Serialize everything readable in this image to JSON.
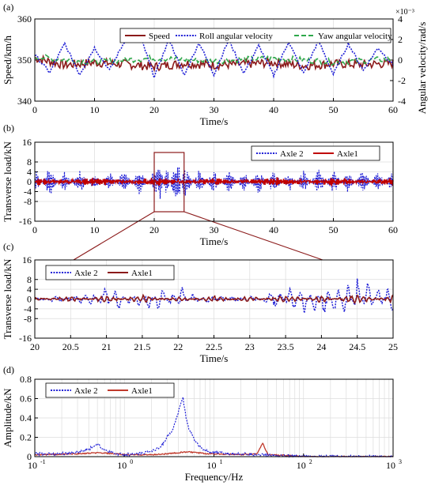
{
  "chart_data": [
    {
      "panel": "(a)",
      "type": "line",
      "xlabel": "Time/s",
      "ylabel": "Speed/km/h",
      "y2label": "Angular velocity/rad/s",
      "y2_exponent": "×10⁻³",
      "xlim": [
        0,
        60
      ],
      "ylim": [
        340,
        360
      ],
      "y2lim": [
        -4,
        4
      ],
      "x_ticks": [
        "0",
        "10",
        "20",
        "30",
        "40",
        "50",
        "60"
      ],
      "y_ticks": [
        "340",
        "350",
        "360"
      ],
      "y2_ticks": [
        "-4",
        "-2",
        "0",
        "2",
        "4"
      ],
      "grid": true,
      "legend_position": "top-right",
      "series": [
        {
          "name": "Speed",
          "axis": "left",
          "color": "#8B1A1A",
          "style": "solid",
          "x": [
            0,
            5,
            10,
            15,
            20,
            25,
            30,
            35,
            40,
            45,
            50,
            55,
            60
          ],
          "values": [
            350.5,
            348.8,
            349.4,
            349.0,
            348.4,
            349.2,
            348.8,
            349.0,
            349.4,
            348.6,
            349.1,
            348.9,
            349.2
          ]
        },
        {
          "name": "Roll angular velocity",
          "axis": "right",
          "color": "#1f1fd6",
          "style": "dotted",
          "x": [
            0,
            2.5,
            5,
            7.5,
            10,
            12.5,
            15,
            17.5,
            20,
            22.5,
            25,
            27.5,
            30,
            32.5,
            35,
            37.5,
            40,
            42.5,
            45,
            47.5,
            50,
            52.5,
            55,
            57.5,
            60
          ],
          "values": [
            0.5,
            -1.2,
            1.6,
            -1.4,
            1.2,
            -1.0,
            1.8,
            2.6,
            -1.6,
            2.0,
            -1.5,
            1.7,
            -1.4,
            2.0,
            -1.3,
            1.4,
            -1.5,
            1.8,
            -1.3,
            1.9,
            -1.4,
            1.6,
            -1.0,
            1.2,
            -0.5
          ]
        },
        {
          "name": "Yaw angular velocity",
          "axis": "right",
          "color": "#2ea84a",
          "style": "dashed",
          "x": [
            0,
            10,
            20,
            30,
            40,
            50,
            60
          ],
          "values": [
            0.3,
            -0.2,
            0.2,
            -0.1,
            0.2,
            -0.2,
            0.1
          ]
        }
      ]
    },
    {
      "panel": "(b)",
      "type": "line",
      "xlabel": "Time/s",
      "ylabel": "Transverse load/kN",
      "xlim": [
        0,
        60
      ],
      "ylim": [
        -16,
        16
      ],
      "x_ticks": [
        "0",
        "10",
        "20",
        "30",
        "40",
        "50",
        "60"
      ],
      "y_ticks": [
        "-16",
        "-8",
        "-4",
        "0",
        "4",
        "8",
        "16"
      ],
      "grid": true,
      "legend_position": "top-right",
      "zoom_window": [
        20,
        25
      ],
      "series": [
        {
          "name": "Axle 2",
          "color": "#1f1fd6",
          "style": "dotted",
          "x": [
            0,
            2.5,
            5,
            7.5,
            10,
            12.5,
            15,
            17.5,
            20,
            21,
            22,
            23,
            24,
            25,
            27.5,
            30,
            32.5,
            35,
            37.5,
            40,
            42.5,
            45,
            47.5,
            50,
            52.5,
            55,
            57.5,
            60
          ],
          "values": [
            4.8,
            -5.6,
            4.0,
            -4.4,
            3.6,
            -4.0,
            4.8,
            -5.2,
            4.4,
            7.6,
            -6.8,
            4.0,
            9.2,
            -7.6,
            4.4,
            -4.4,
            4.8,
            -4.0,
            4.6,
            -4.8,
            4.0,
            -4.4,
            4.8,
            -4.6,
            4.2,
            -4.8,
            4.4,
            -4.8
          ]
        },
        {
          "name": "Axle1",
          "color": "#c00000",
          "style": "solid",
          "x": [
            0,
            10,
            20,
            30,
            40,
            50,
            60
          ],
          "values": [
            1.4,
            -1.6,
            1.4,
            -1.2,
            1.6,
            -1.4,
            1.2
          ]
        }
      ]
    },
    {
      "panel": "(c)",
      "type": "line",
      "xlabel": "Time/s",
      "ylabel": "Transverse load/kN",
      "xlim": [
        20,
        25
      ],
      "ylim": [
        -16,
        16
      ],
      "x_ticks": [
        "20",
        "20.5",
        "21",
        "21.5",
        "22",
        "22.5",
        "23",
        "23.5",
        "24",
        "24.5",
        "25"
      ],
      "y_ticks": [
        "-16",
        "-8",
        "-4",
        "0",
        "4",
        "8",
        "16"
      ],
      "grid": true,
      "legend_position": "top-left",
      "series": [
        {
          "name": "Axle 2",
          "color": "#1f1fd6",
          "style": "dotted",
          "x": [
            20,
            20.3,
            20.6,
            20.8,
            21.0,
            21.15,
            21.3,
            21.45,
            21.6,
            21.75,
            21.9,
            22.05,
            22.2,
            22.4,
            22.6,
            22.8,
            23.0,
            23.2,
            23.4,
            23.6,
            23.75,
            23.9,
            24.05,
            24.2,
            24.35,
            24.5,
            24.65,
            24.8,
            24.95
          ],
          "values": [
            1.0,
            -1.0,
            1.5,
            2.0,
            -4.5,
            5.5,
            -2.0,
            3.0,
            -3.5,
            6.0,
            -4.0,
            5.0,
            -2.5,
            1.5,
            -1.0,
            1.2,
            -1.0,
            1.0,
            3.5,
            -6.0,
            7.0,
            -7.5,
            8.0,
            -7.0,
            8.5,
            -8.0,
            8.0,
            -5.0,
            6.0
          ]
        },
        {
          "name": "Axle1",
          "color": "#8B1A1A",
          "style": "solid",
          "x": [
            20,
            20.5,
            21,
            21.5,
            22,
            22.5,
            23,
            23.5,
            24,
            24.5,
            25
          ],
          "values": [
            0.5,
            -1.0,
            1.2,
            -1.5,
            1.0,
            -1.2,
            1.0,
            -1.5,
            1.2,
            -1.8,
            1.5
          ]
        }
      ]
    },
    {
      "panel": "(d)",
      "type": "line",
      "xlabel": "Frequency/Hz",
      "ylabel": "Amplitude/kN",
      "x_scale": "log",
      "xlim": [
        0.1,
        1000
      ],
      "ylim": [
        0,
        0.8
      ],
      "x_ticks": [
        "10",
        "10",
        "10",
        "10",
        "10"
      ],
      "x_tick_exponents": [
        "-1",
        "0",
        "1",
        "2",
        "3"
      ],
      "y_ticks": [
        "0",
        "0.2",
        "0.4",
        "0.6",
        "0.8"
      ],
      "grid": true,
      "legend_position": "top-left",
      "series": [
        {
          "name": "Axle 2",
          "color": "#1f1fd6",
          "style": "dotted",
          "x": [
            0.1,
            0.2,
            0.35,
            0.45,
            0.5,
            0.6,
            0.8,
            1.0,
            1.5,
            2.0,
            2.5,
            3.0,
            3.5,
            3.8,
            4.2,
            4.5,
            4.8,
            5.2,
            6.0,
            7.0,
            8.0,
            10,
            15,
            20,
            30,
            35,
            50,
            100,
            1000
          ],
          "values": [
            0.03,
            0.03,
            0.06,
            0.1,
            0.13,
            0.07,
            0.03,
            0.02,
            0.03,
            0.06,
            0.1,
            0.2,
            0.28,
            0.4,
            0.52,
            0.62,
            0.44,
            0.3,
            0.18,
            0.1,
            0.06,
            0.04,
            0.03,
            0.03,
            0.02,
            0.02,
            0.01,
            0.0,
            0.0
          ]
        },
        {
          "name": "Axle1",
          "color": "#c0392b",
          "style": "solid",
          "x": [
            0.1,
            0.5,
            1,
            2,
            4,
            5,
            8,
            10,
            20,
            30,
            35,
            40,
            100,
            1000
          ],
          "values": [
            0.02,
            0.04,
            0.02,
            0.02,
            0.04,
            0.05,
            0.03,
            0.03,
            0.02,
            0.03,
            0.14,
            0.02,
            0.0,
            0.0
          ]
        }
      ]
    }
  ]
}
